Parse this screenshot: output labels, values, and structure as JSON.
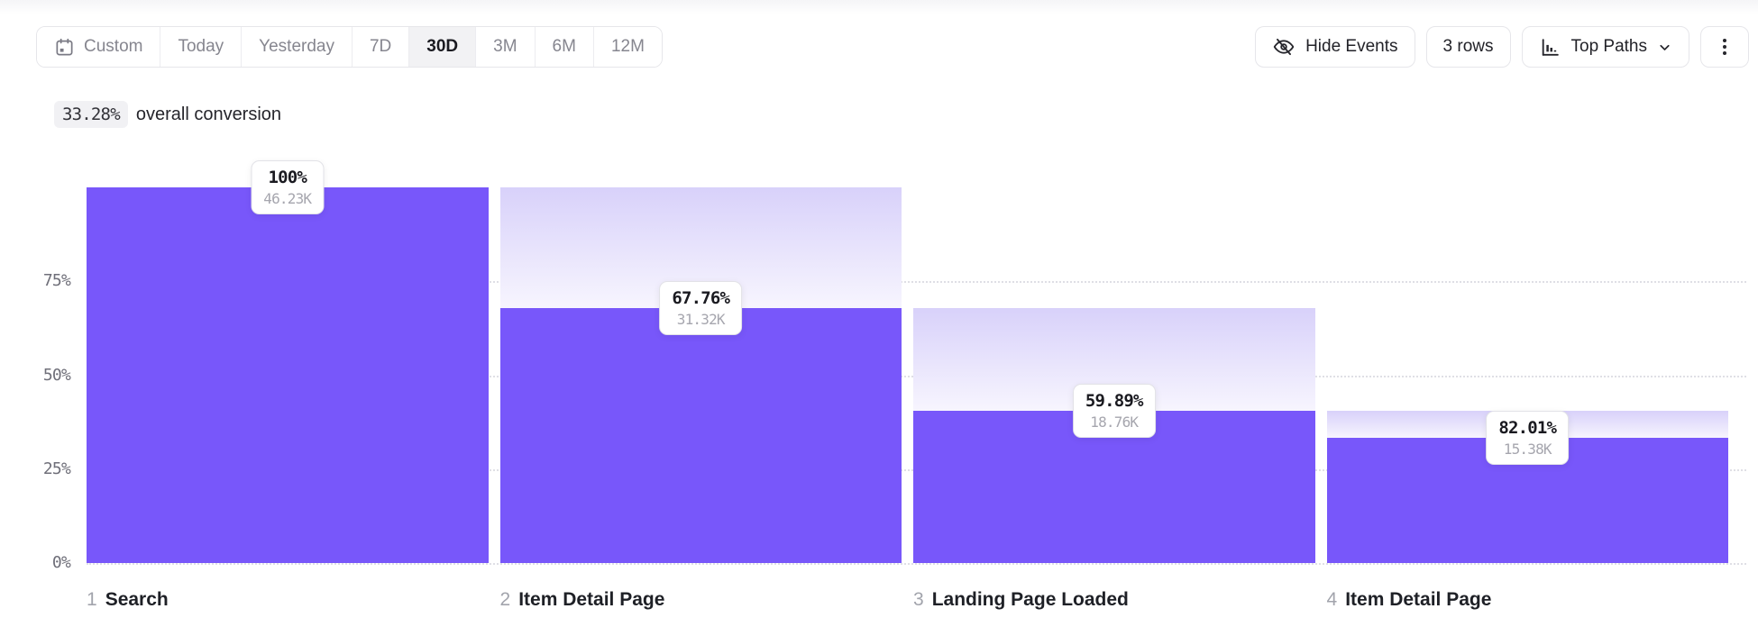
{
  "toolbar": {
    "date_ranges": [
      {
        "label": "Custom",
        "icon": "calendar-icon",
        "active": false
      },
      {
        "label": "Today",
        "active": false
      },
      {
        "label": "Yesterday",
        "active": false
      },
      {
        "label": "7D",
        "active": false
      },
      {
        "label": "30D",
        "active": true
      },
      {
        "label": "3M",
        "active": false
      },
      {
        "label": "6M",
        "active": false
      },
      {
        "label": "12M",
        "active": false
      }
    ],
    "hide_events": {
      "label": "Hide Events",
      "icon": "eye-off-icon"
    },
    "rows": {
      "label": "3 rows"
    },
    "top_paths": {
      "label": "Top Paths",
      "icon": "bar-chart-icon",
      "chevron": "chevron-down-icon"
    },
    "more_menu": {
      "icon": "kebab-menu-icon"
    }
  },
  "summary": {
    "value": "33.28%",
    "text": "overall conversion"
  },
  "chart_data": {
    "type": "bar",
    "subtype": "funnel",
    "title": "",
    "xlabel": "",
    "ylabel": "",
    "ylim": [
      0,
      100
    ],
    "grid": "dotted-horizontal",
    "legend": "none",
    "overall_conversion": "33.28%",
    "y_ticks": [
      {
        "label": "0%",
        "value": 0
      },
      {
        "label": "25%",
        "value": 25
      },
      {
        "label": "50%",
        "value": 50
      },
      {
        "label": "75%",
        "value": 75
      }
    ],
    "steps": [
      {
        "index": "1",
        "label": "Search",
        "step_conversion": "100%",
        "count_label": "46.23K",
        "count": 46230,
        "pct_of_first": 100
      },
      {
        "index": "2",
        "label": "Item Detail Page",
        "step_conversion": "67.76%",
        "count_label": "31.32K",
        "count": 31320,
        "pct_of_first": 67.76
      },
      {
        "index": "3",
        "label": "Landing Page Loaded",
        "step_conversion": "59.89%",
        "count_label": "18.76K",
        "count": 18760,
        "pct_of_first": 40.58
      },
      {
        "index": "4",
        "label": "Item Detail Page",
        "step_conversion": "82.01%",
        "count_label": "15.38K",
        "count": 15380,
        "pct_of_first": 33.27
      }
    ],
    "colors": {
      "bar": "#7857FA",
      "ghost_top": "#D8D1FA",
      "ghost_bottom": "#F7F5FE",
      "gridline": "#DFDFE5"
    }
  }
}
